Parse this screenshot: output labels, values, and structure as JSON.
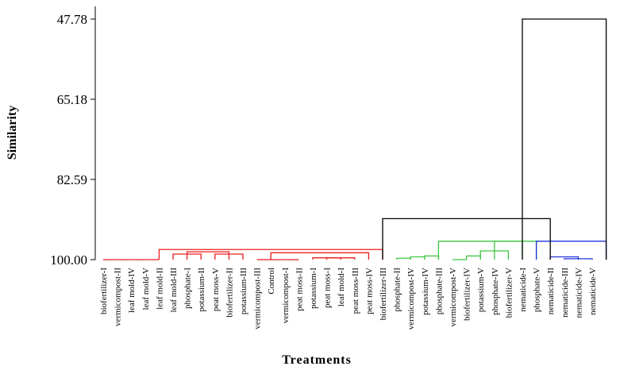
{
  "chart_data": {
    "type": "dendrogram",
    "ylabel": "Similarity",
    "xlabel": "Treatments",
    "y_ticks": [
      "47.78",
      "65.18",
      "82.59",
      "100.00"
    ],
    "ylim": [
      47.78,
      100.0
    ],
    "y_direction": "reversed",
    "leaves": [
      "biofertilizer-I",
      "vermicompost-II",
      "leaf mold-IV",
      "leaf mold-V",
      "leaf mold-II",
      "leaf mold-III",
      "phosphate-I",
      "potassium-II",
      "peat moss-V",
      "biofertilizer-II",
      "potassium-III",
      "vermicompost-III",
      "Control",
      "vermicompost-I",
      "peat moss-II",
      "potassium-I",
      "peat moss-I",
      "leaf mold-I",
      "peat moss-III",
      "peat moss-IV",
      "biofertilizer-III",
      "phosphate-II",
      "vermicompost-IV",
      "potassium-IV",
      "phosphate-III",
      "vermicompost-V",
      "biofertilizer-IV",
      "potassium-V",
      "phosphate-IV",
      "biofertilizer-V",
      "nematicide-I",
      "phosphate-V",
      "nematicide-II",
      "nematicide-III",
      "nematicide-IV",
      "nematicide-V"
    ],
    "cluster_colors": {
      "red": "#ee1c1c",
      "green": "#3ec63e",
      "blue": "#2233dd",
      "root": "#000000"
    },
    "merges": [
      {
        "a": 0,
        "b": 1,
        "h": 100.0,
        "color": "red"
      },
      {
        "a": 1,
        "b": 2,
        "h": 100.0,
        "color": "red"
      },
      {
        "a": 2,
        "b": 3,
        "h": 100.0,
        "color": "red"
      },
      {
        "a": 3,
        "b": 4,
        "h": 100.0,
        "color": "red"
      },
      {
        "a": 5,
        "b": 7,
        "h": 98.8,
        "color": "red"
      },
      {
        "a": 8,
        "b": 10,
        "h": 98.8,
        "color": "red"
      },
      {
        "a": 6,
        "b": 9,
        "h": 98.3,
        "color": "red"
      },
      {
        "a": 11,
        "b": 13,
        "h": 100.0,
        "color": "red"
      },
      {
        "a": 13,
        "b": 14,
        "h": 100.0,
        "color": "red"
      },
      {
        "a": 15,
        "b": 17,
        "h": 99.6,
        "color": "red"
      },
      {
        "a": 16,
        "b": 18,
        "h": 99.6,
        "color": "red"
      },
      {
        "a": 12,
        "b": 19,
        "h": 98.5,
        "color": "red"
      },
      {
        "a": 4,
        "b": 20,
        "h": 97.8,
        "color": "red"
      },
      {
        "a": 21,
        "b": 22,
        "h": 99.7,
        "color": "green"
      },
      {
        "a": 22,
        "b": 23,
        "h": 99.4,
        "color": "green"
      },
      {
        "a": 23,
        "b": 24,
        "h": 99.2,
        "color": "green"
      },
      {
        "a": 25,
        "b": 26,
        "h": 100.0,
        "color": "green"
      },
      {
        "a": 26,
        "b": 27,
        "h": 99.2,
        "color": "green"
      },
      {
        "a": 27,
        "b": 29,
        "h": 98.1,
        "color": "green"
      },
      {
        "a": 28,
        "b": 30,
        "h": 96.0,
        "color": "green"
      },
      {
        "a": 24,
        "b": 31,
        "h": 96.0,
        "color": "green"
      },
      {
        "a": 32,
        "b": 34,
        "h": 99.4,
        "color": "blue"
      },
      {
        "a": 33,
        "b": 35,
        "h": 99.8,
        "color": "blue"
      },
      {
        "a": 31,
        "b": 36,
        "h": 96.0,
        "color": "blue"
      },
      {
        "a": 20,
        "b": 32,
        "h": 91.1,
        "color": "root"
      },
      {
        "a": 30,
        "b": 36,
        "h": 47.78,
        "color": "root"
      }
    ]
  }
}
